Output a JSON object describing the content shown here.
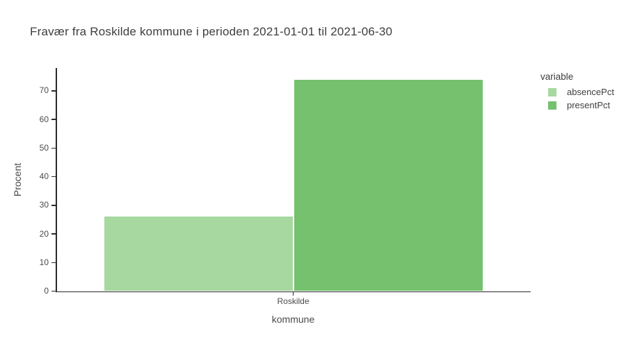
{
  "chart_data": {
    "type": "bar",
    "title": "Fravær fra Roskilde kommune i perioden 2021-01-01 til 2021-06-30",
    "xlabel": "kommune",
    "ylabel": "Procent",
    "categories": [
      "Roskilde"
    ],
    "series": [
      {
        "name": "absencePct",
        "values": [
          26.1
        ],
        "color": "#a6d8a0"
      },
      {
        "name": "presentPct",
        "values": [
          73.9
        ],
        "color": "#75c16d"
      }
    ],
    "ylim": [
      0,
      78
    ],
    "yticks": [
      0,
      10,
      20,
      30,
      40,
      50,
      60,
      70
    ],
    "legend": {
      "title": "variable",
      "position": "right"
    },
    "grid": false,
    "background": "#ffffff",
    "axis_color": "#2a2a2a",
    "text_color": "#4a4a4a"
  }
}
